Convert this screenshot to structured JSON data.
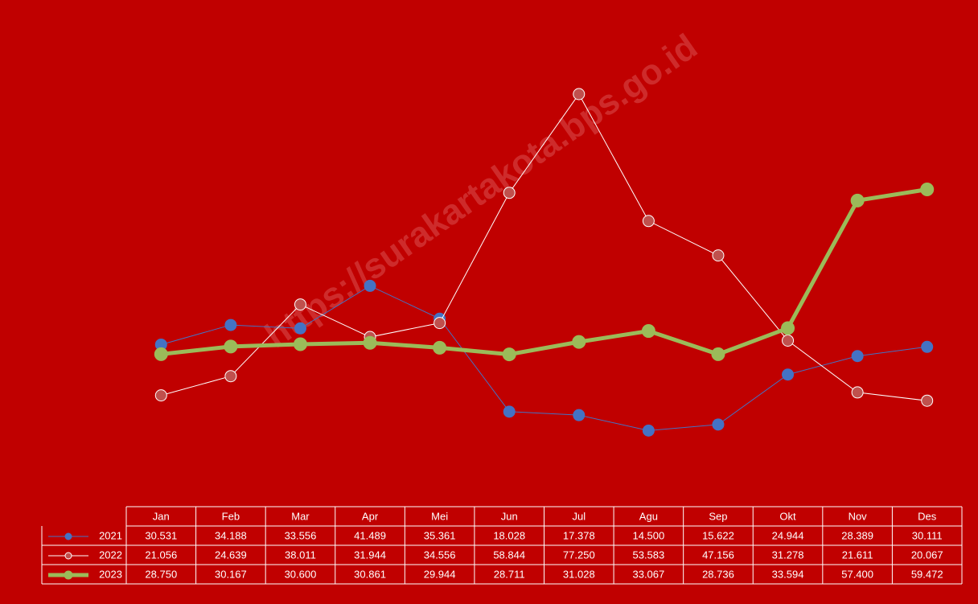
{
  "chart_data": {
    "type": "line",
    "watermark": "https://surakartakota.bps.go.id",
    "categories": [
      "Jan",
      "Feb",
      "Mar",
      "Apr",
      "Mei",
      "Jun",
      "Jul",
      "Agu",
      "Sep",
      "Okt",
      "Nov",
      "Des"
    ],
    "ylim": [
      0,
      90
    ],
    "series": [
      {
        "name": "2021",
        "color": "#4472c4",
        "values": [
          30.531,
          34.188,
          33.556,
          41.489,
          35.361,
          18.028,
          17.378,
          14.5,
          15.622,
          24.944,
          28.389,
          30.111
        ],
        "value_labels": [
          "30.531",
          "34.188",
          "33.556",
          "41.489",
          "35.361",
          "18.028",
          "17.378",
          "14.500",
          "15.622",
          "24.944",
          "28.389",
          "30.111"
        ]
      },
      {
        "name": "2022",
        "color": "#ffffff",
        "values": [
          21.056,
          24.639,
          38.011,
          31.944,
          34.556,
          58.844,
          77.25,
          53.583,
          47.156,
          31.278,
          21.611,
          20.067
        ],
        "value_labels": [
          "21.056",
          "24.639",
          "38.011",
          "31.944",
          "34.556",
          "58.844",
          "77.250",
          "53.583",
          "47.156",
          "31.278",
          "21.611",
          "20.067"
        ]
      },
      {
        "name": "2023",
        "color": "#9bbb59",
        "values": [
          28.75,
          30.167,
          30.6,
          30.861,
          29.944,
          28.711,
          31.028,
          33.067,
          28.736,
          33.594,
          57.4,
          59.472
        ],
        "value_labels": [
          "28.750",
          "30.167",
          "30.600",
          "30.861",
          "29.944",
          "28.711",
          "31.028",
          "33.067",
          "28.736",
          "33.594",
          "57.400",
          "59.472"
        ]
      }
    ]
  }
}
